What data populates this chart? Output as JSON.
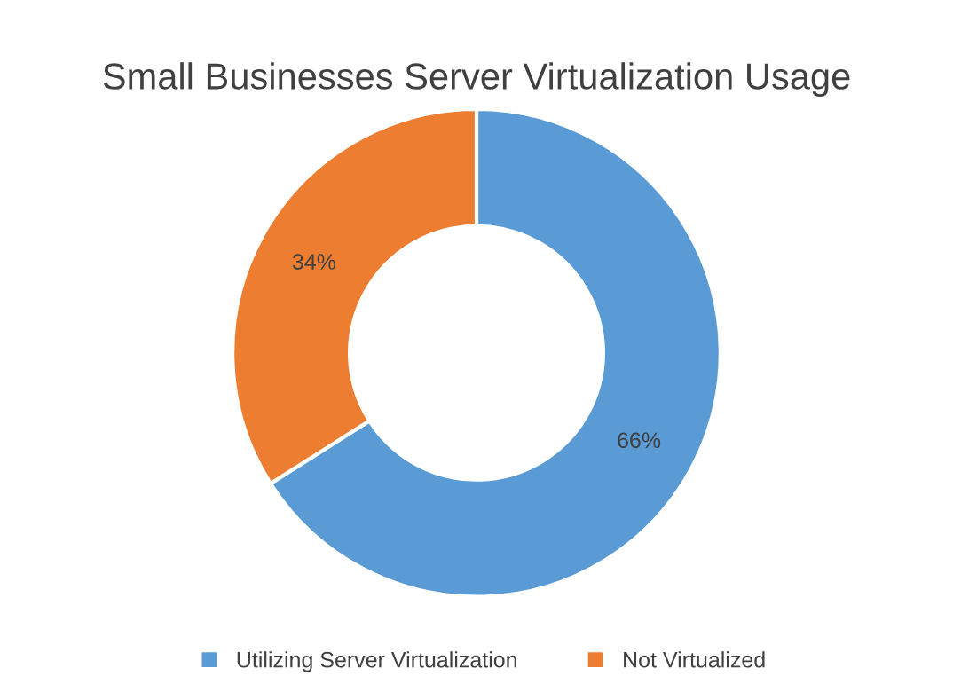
{
  "chart_data": {
    "type": "donut",
    "title": "Small Businesses Server Virtualization Usage",
    "categories": [
      "Utilizing Server Virtualization",
      "Not Virtualized"
    ],
    "values": [
      66,
      34
    ],
    "colors": [
      "#5b9bd5",
      "#ed7d31"
    ],
    "value_labels": [
      "66%",
      "34%"
    ],
    "legend": "bottom"
  }
}
